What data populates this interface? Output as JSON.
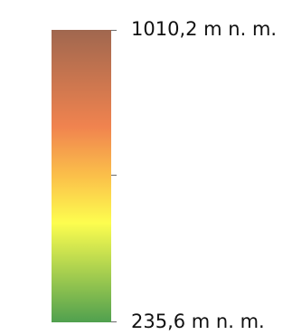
{
  "legend": {
    "max_label": "1010,2 m n. m.",
    "min_label": "235,6 m n. m.",
    "max_value": 1010.2,
    "min_value": 235.6,
    "unit": "m n. m.",
    "colors": {
      "top": "#a0674f",
      "upper_mid": "#f0834f",
      "middle": "#fbc04a",
      "lower_mid": "#fdfd4f",
      "bottom": "#50a04f"
    }
  }
}
